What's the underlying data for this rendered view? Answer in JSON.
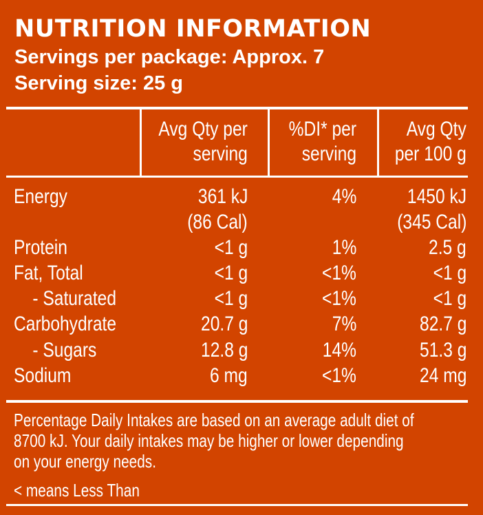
{
  "title": "NUTRITION INFORMATION",
  "servings": "Servings per package: Approx. 7",
  "serving_size": "Serving size: 25 g",
  "headers": {
    "col1": [
      "Avg Qty per",
      "serving"
    ],
    "col2": [
      "%DI* per",
      "serving"
    ],
    "col3": [
      "Avg Qty",
      "per 100 g"
    ]
  },
  "rows": [
    {
      "label": "Energy",
      "c1": "361 kJ",
      "c2": "4%",
      "c3": "1450 kJ"
    },
    {
      "label": "",
      "c1": "(86 Cal)",
      "c2": "",
      "c3": "(345 Cal)"
    },
    {
      "label": "Protein",
      "c1": "<1 g",
      "c2": "1%",
      "c3": "2.5 g"
    },
    {
      "label": "Fat, Total",
      "c1": "<1 g",
      "c2": "<1%",
      "c3": "<1 g"
    },
    {
      "label": "    - Saturated",
      "c1": "<1 g",
      "c2": "<1%",
      "c3": "<1 g"
    },
    {
      "label": "Carbohydrate",
      "c1": "20.7 g",
      "c2": "7%",
      "c3": "82.7 g"
    },
    {
      "label": "    - Sugars",
      "c1": "12.8 g",
      "c2": "14%",
      "c3": "51.3 g"
    },
    {
      "label": "Sodium",
      "c1": "6 mg",
      "c2": "<1%",
      "c3": "24 mg"
    }
  ],
  "footnote": [
    "Percentage Daily Intakes are based on an average adult diet of",
    "8700 kJ. Your daily intakes may be higher or lower depending",
    "on your energy needs."
  ],
  "less_than_note": "< means Less Than",
  "colors": {
    "background": "#d24400",
    "text": "#ffffff"
  }
}
